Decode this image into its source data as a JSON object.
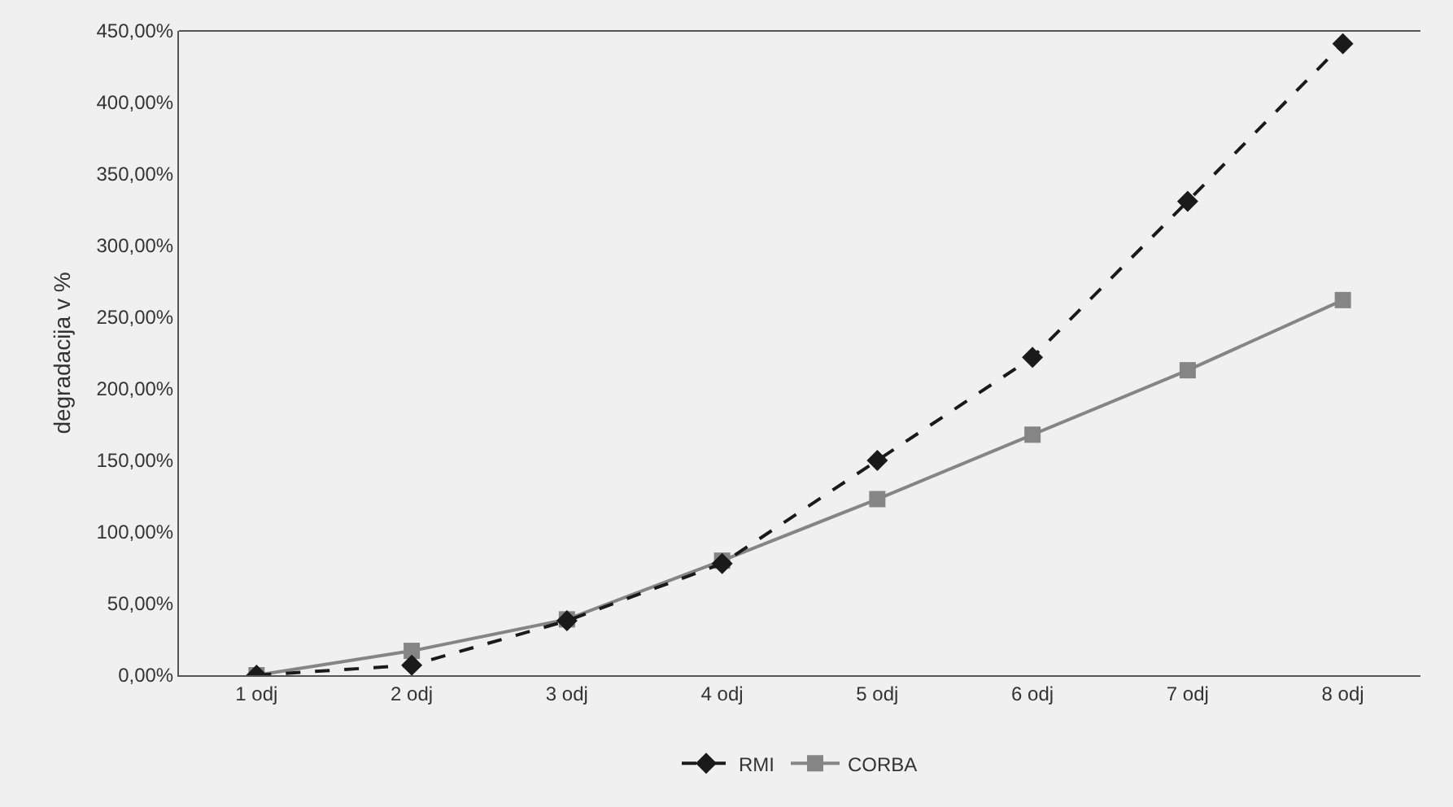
{
  "chart_data": {
    "type": "line",
    "ylabel": "degradacija v %",
    "categories": [
      "1 odj",
      "2 odj",
      "3 odj",
      "4 odj",
      "5 odj",
      "6 odj",
      "7 odj",
      "8 odj"
    ],
    "series": [
      {
        "name": "RMI",
        "color": "#1a1a1a",
        "marker": "diamond",
        "line_style": "dashed",
        "values": [
          0,
          7,
          38,
          78,
          150,
          222,
          331,
          441
        ]
      },
      {
        "name": "CORBA",
        "color": "#858585",
        "marker": "square",
        "line_style": "solid",
        "values": [
          0,
          17,
          39,
          80,
          123,
          168,
          213,
          262
        ]
      }
    ],
    "ylim": [
      0,
      450
    ],
    "yticks": [
      {
        "value": 0,
        "label": "0,00%"
      },
      {
        "value": 50,
        "label": "50,00%"
      },
      {
        "value": 100,
        "label": "100,00%"
      },
      {
        "value": 150,
        "label": "150,00%"
      },
      {
        "value": 200,
        "label": "200,00%"
      },
      {
        "value": 250,
        "label": "250,00%"
      },
      {
        "value": 300,
        "label": "300,00%"
      },
      {
        "value": 350,
        "label": "350,00%"
      },
      {
        "value": 400,
        "label": "400,00%"
      },
      {
        "value": 450,
        "label": "450,00%"
      }
    ],
    "grid": false,
    "legend": "bottom"
  }
}
